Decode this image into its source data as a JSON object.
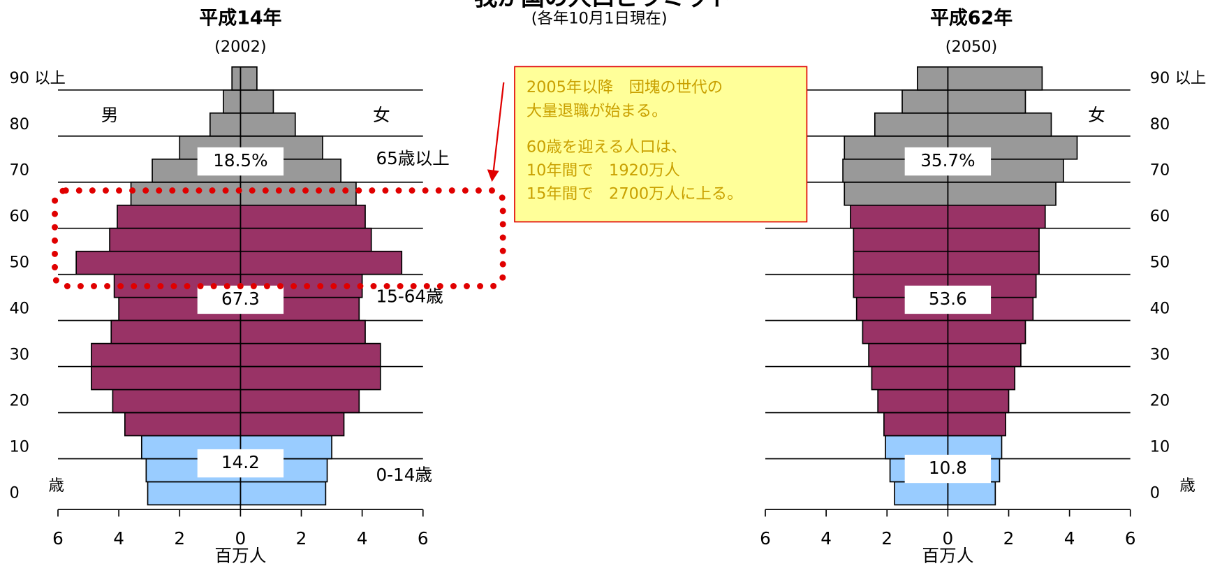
{
  "title": "我が国の人口ピラミッド",
  "subtitle": "(各年10月1日現在)",
  "callout": [
    "2005年以降　団塊の世代の",
    "大量退職が始まる。",
    "60歳を迎える人口は、",
    "10年間で　1920万人",
    "15年間で　2700万人に上る。"
  ],
  "chart_data": [
    {
      "type": "pyramid",
      "title": "平成14年",
      "subtitle": "(2002)",
      "categories": [
        "0",
        null,
        "10",
        null,
        "20",
        null,
        "30",
        null,
        "40",
        null,
        "50",
        null,
        "60",
        null,
        "70",
        null,
        "80",
        null,
        "90 以上"
      ],
      "y_label": "歳",
      "x_label": "百万人",
      "series": [
        {
          "name": "男",
          "values": [
            3.05,
            3.1,
            3.25,
            3.8,
            4.2,
            4.9,
            4.9,
            4.25,
            4.0,
            4.15,
            5.4,
            4.3,
            4.05,
            3.6,
            2.9,
            2.0,
            1.0,
            0.56,
            0.28
          ]
        },
        {
          "name": "女",
          "values": [
            2.8,
            2.85,
            3.0,
            3.4,
            3.9,
            4.6,
            4.6,
            4.1,
            3.9,
            4.0,
            5.3,
            4.3,
            4.1,
            3.8,
            3.3,
            2.7,
            1.8,
            1.08,
            0.54
          ]
        }
      ],
      "bar_colors": [
        "#99ccff",
        "#99ccff",
        "#99ccff",
        "#993366",
        "#993366",
        "#993366",
        "#993366",
        "#993366",
        "#993366",
        "#993366",
        "#993366",
        "#993366",
        "#993366",
        "#999999",
        "#999999",
        "#999999",
        "#999999",
        "#999999",
        "#999999"
      ],
      "shares": [
        "18.5%",
        "67.3",
        "14.2"
      ],
      "group_labels": [
        "65歳以上",
        "15-64歳",
        "0-14歳"
      ],
      "xlim": [
        -6,
        6
      ],
      "xticks": [
        {
          "value": -6,
          "label": "6"
        },
        {
          "value": -4,
          "label": "4"
        },
        {
          "value": -2,
          "label": "2"
        },
        0,
        2,
        4,
        6
      ],
      "grid": true,
      "y_axis_side": "left"
    },
    {
      "type": "pyramid",
      "title": "平成62年",
      "subtitle": "(2050)",
      "categories": [
        "0",
        null,
        "10",
        null,
        "20",
        null,
        "30",
        null,
        "40",
        null,
        "50",
        null,
        "60",
        null,
        "70",
        null,
        "80",
        null,
        "90 以上"
      ],
      "y_label": "歳",
      "x_label": "百万人",
      "series": [
        {
          "values": [
            1.75,
            1.9,
            2.05,
            2.1,
            2.3,
            2.5,
            2.6,
            2.8,
            3.0,
            3.1,
            3.1,
            3.1,
            3.2,
            3.4,
            3.45,
            3.4,
            2.4,
            1.5,
            1.0
          ]
        },
        {
          "name": "女",
          "values": [
            1.56,
            1.7,
            1.77,
            1.9,
            2.0,
            2.2,
            2.4,
            2.55,
            2.8,
            2.9,
            3.0,
            3.0,
            3.2,
            3.55,
            3.8,
            4.25,
            3.4,
            2.55,
            3.1
          ]
        }
      ],
      "bar_colors": [
        "#99ccff",
        "#99ccff",
        "#99ccff",
        "#993366",
        "#993366",
        "#993366",
        "#993366",
        "#993366",
        "#993366",
        "#993366",
        "#993366",
        "#993366",
        "#993366",
        "#999999",
        "#999999",
        "#999999",
        "#999999",
        "#999999",
        "#999999"
      ],
      "shares": [
        "35.7%",
        "53.6",
        "10.8"
      ],
      "xlim": [
        -6,
        6
      ],
      "xticks": [
        {
          "value": -6,
          "label": "6"
        },
        {
          "value": -4,
          "label": "4"
        },
        {
          "value": -2,
          "label": "2"
        },
        0,
        2,
        4,
        6
      ],
      "grid": true,
      "y_axis_side": "right"
    }
  ]
}
